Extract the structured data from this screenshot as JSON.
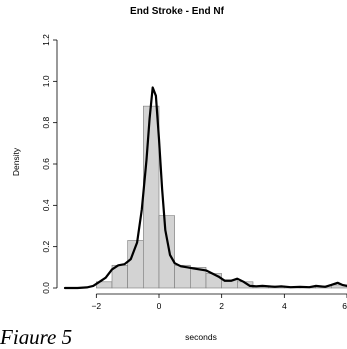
{
  "chart_data": {
    "type": "histogram",
    "title": "End Stroke - End Nf",
    "xlabel": "seconds",
    "ylabel": "Density",
    "xlim": [
      -3,
      6
    ],
    "ylim": [
      0,
      1.2
    ],
    "x_ticks": [
      -2,
      0,
      2,
      4,
      6
    ],
    "x_tick_labels": [
      "−2",
      "0",
      "2",
      "4",
      "6"
    ],
    "y_ticks": [
      0,
      0.2,
      0.4,
      0.6,
      0.8,
      1.0,
      1.2
    ],
    "y_tick_labels": [
      "0.0",
      "0.2",
      "0.4",
      "0.6",
      "0.8",
      "1.0",
      "1.2"
    ],
    "bin_width": 0.5,
    "bins": [
      {
        "start": -2.0,
        "density": 0.03
      },
      {
        "start": -1.5,
        "density": 0.11
      },
      {
        "start": -1.0,
        "density": 0.23
      },
      {
        "start": -0.5,
        "density": 0.88
      },
      {
        "start": 0.0,
        "density": 0.35
      },
      {
        "start": 0.5,
        "density": 0.11
      },
      {
        "start": 1.0,
        "density": 0.1
      },
      {
        "start": 1.5,
        "density": 0.07
      },
      {
        "start": 2.0,
        "density": 0.04
      },
      {
        "start": 2.5,
        "density": 0.03
      },
      {
        "start": 3.0,
        "density": 0.01
      },
      {
        "start": 3.5,
        "density": 0.01
      },
      {
        "start": 4.0,
        "density": 0.005
      },
      {
        "start": 4.5,
        "density": 0.005
      },
      {
        "start": 5.0,
        "density": 0.01
      },
      {
        "start": 5.5,
        "density": 0.015
      }
    ],
    "density_curve": {
      "x": [
        -3,
        -2.6,
        -2.3,
        -2.1,
        -1.9,
        -1.7,
        -1.5,
        -1.3,
        -1.1,
        -0.9,
        -0.7,
        -0.55,
        -0.4,
        -0.3,
        -0.2,
        -0.1,
        0,
        0.1,
        0.2,
        0.35,
        0.5,
        0.7,
        0.9,
        1.1,
        1.3,
        1.5,
        1.7,
        1.9,
        2.1,
        2.3,
        2.5,
        2.7,
        2.9,
        3.1,
        3.3,
        3.5,
        3.7,
        3.9,
        4.2,
        4.5,
        4.8,
        5.0,
        5.3,
        5.5,
        5.7,
        5.85,
        6.0
      ],
      "y": [
        0.0,
        0.0,
        0.003,
        0.01,
        0.03,
        0.05,
        0.09,
        0.11,
        0.115,
        0.14,
        0.22,
        0.38,
        0.62,
        0.82,
        0.97,
        0.93,
        0.72,
        0.48,
        0.28,
        0.16,
        0.12,
        0.105,
        0.1,
        0.095,
        0.09,
        0.085,
        0.07,
        0.055,
        0.035,
        0.035,
        0.045,
        0.03,
        0.01,
        0.008,
        0.01,
        0.008,
        0.006,
        0.008,
        0.004,
        0.006,
        0.004,
        0.01,
        0.006,
        0.015,
        0.025,
        0.015,
        0.01
      ]
    },
    "grid": false,
    "legend": "none"
  },
  "caption": "Figure 5"
}
